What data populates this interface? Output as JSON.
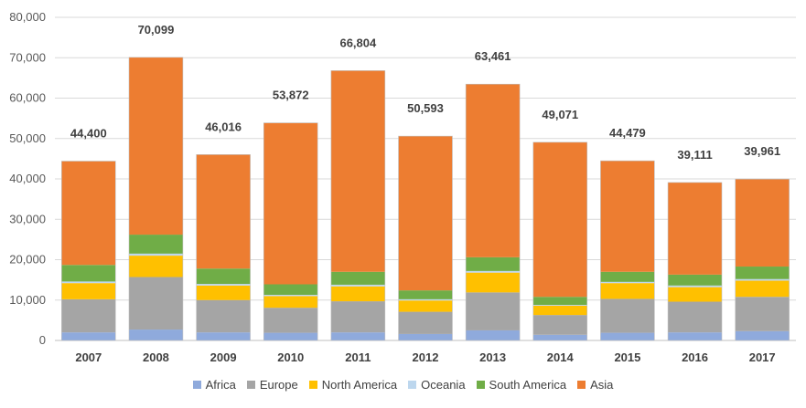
{
  "chart_data": {
    "type": "bar",
    "stacked": true,
    "title": "",
    "xlabel": "",
    "ylabel": "",
    "ylim": [
      0,
      80000
    ],
    "yticks": [
      "0",
      "10,000",
      "20,000",
      "30,000",
      "40,000",
      "50,000",
      "60,000",
      "70,000",
      "80,000"
    ],
    "grid": true,
    "legend_position": "bottom",
    "categories": [
      "2007",
      "2008",
      "2009",
      "2010",
      "2011",
      "2012",
      "2013",
      "2014",
      "2015",
      "2016",
      "2017"
    ],
    "totals": [
      "44,400",
      "70,099",
      "46,016",
      "53,872",
      "66,804",
      "50,593",
      "63,461",
      "49,071",
      "44,479",
      "39,111",
      "39,961"
    ],
    "series": [
      {
        "name": "Africa",
        "color": "#8faadc",
        "values": [
          2000,
          2700,
          2000,
          1900,
          2000,
          1600,
          2500,
          1400,
          1900,
          2000,
          2300
        ]
      },
      {
        "name": "Europe",
        "color": "#a5a5a5",
        "values": [
          8200,
          13000,
          8000,
          6200,
          7700,
          5500,
          9400,
          4900,
          8400,
          7600,
          8500
        ]
      },
      {
        "name": "North America",
        "color": "#ffc000",
        "values": [
          4000,
          5300,
          3600,
          2900,
          3700,
          2800,
          4900,
          2300,
          3900,
          3600,
          4000
        ]
      },
      {
        "name": "Oceania",
        "color": "#bdd7ee",
        "values": [
          400,
          500,
          400,
          300,
          400,
          300,
          400,
          200,
          300,
          400,
          400
        ]
      },
      {
        "name": "South America",
        "color": "#70ad47",
        "values": [
          4100,
          4700,
          3800,
          2600,
          3200,
          2200,
          3400,
          2000,
          2500,
          2700,
          3100
        ]
      },
      {
        "name": "Asia",
        "color": "#ed7d31",
        "values": [
          25700,
          43899,
          28216,
          39972,
          49804,
          38193,
          42861,
          38271,
          27479,
          22811,
          21661
        ]
      }
    ]
  }
}
